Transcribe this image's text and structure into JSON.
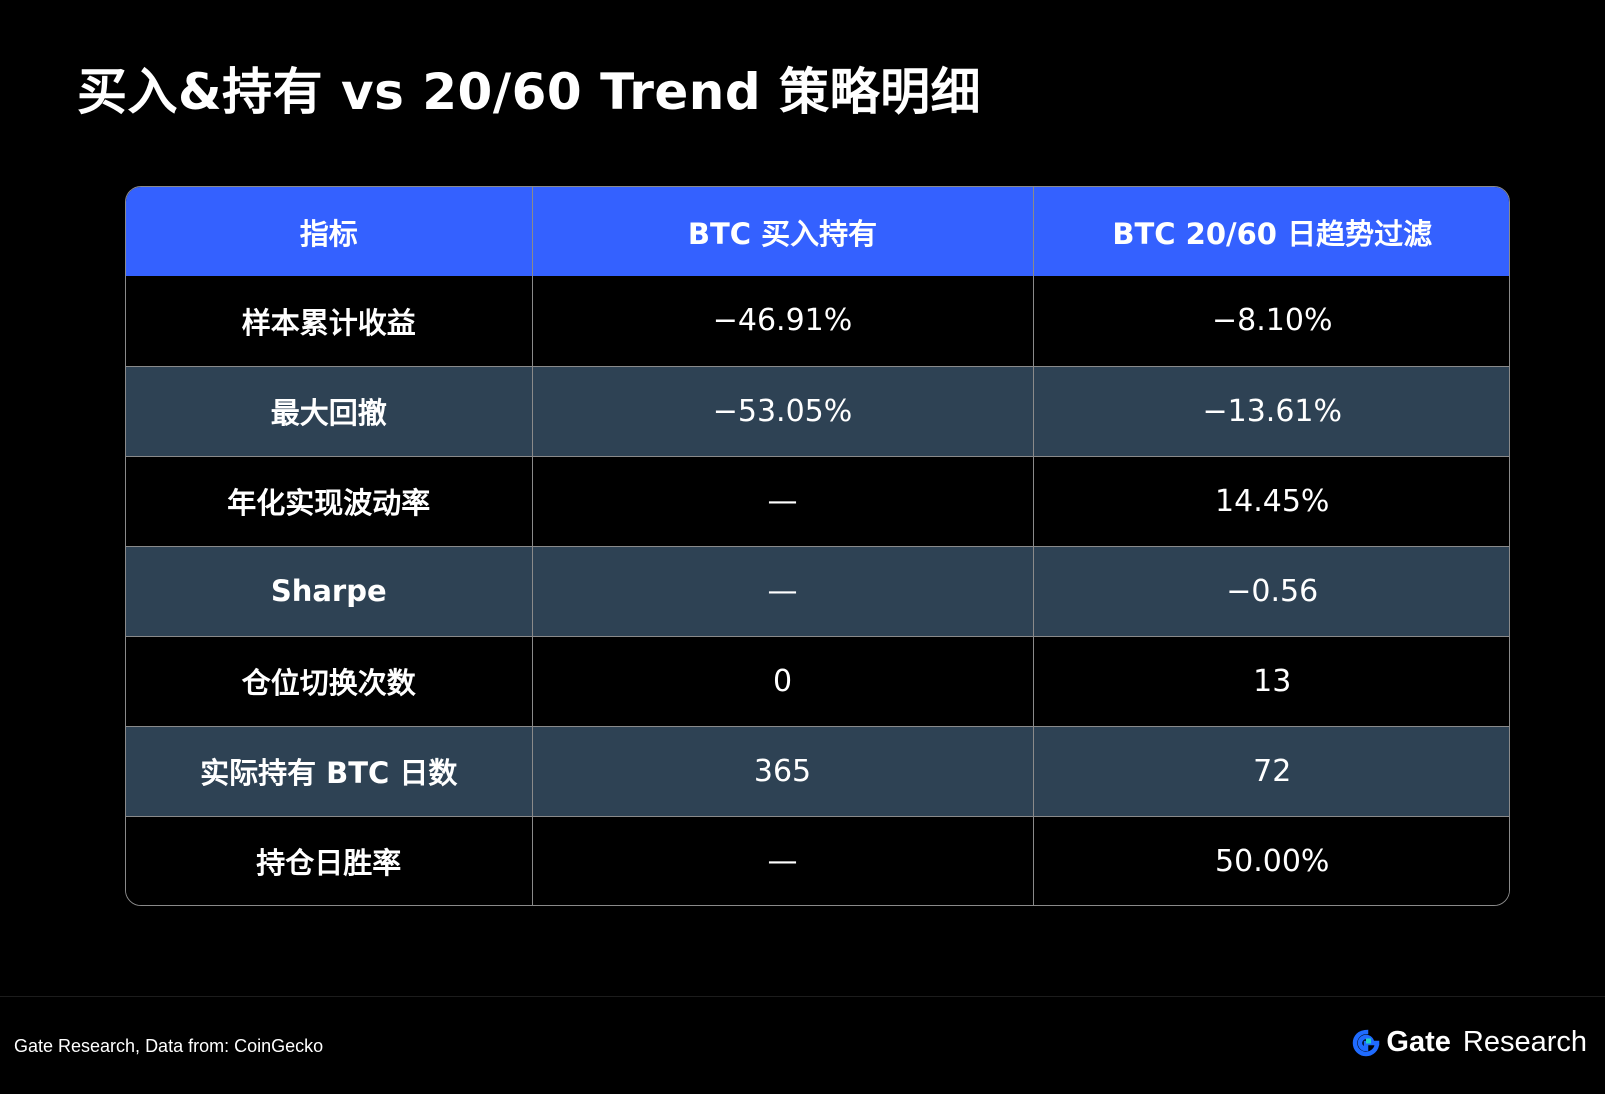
{
  "title": "买入&持有 vs 20/60 Trend 策略明细",
  "chart_data": {
    "type": "table",
    "columns": [
      "指标",
      "BTC 买入持有",
      "BTC 20/60 日趋势过滤"
    ],
    "rows": [
      [
        "样本累计收益",
        "−46.91%",
        "−8.10%"
      ],
      [
        "最大回撤",
        "−53.05%",
        "−13.61%"
      ],
      [
        "年化实现波动率",
        "—",
        "14.45%"
      ],
      [
        "Sharpe",
        "—",
        "−0.56"
      ],
      [
        "仓位切换次数",
        "0",
        "13"
      ],
      [
        "实际持有 BTC 日数",
        "365",
        "72"
      ],
      [
        "持仓日胜率",
        "—",
        "50.00%"
      ]
    ]
  },
  "colors": {
    "header_bg": "#3461ff",
    "row_dark": "#000000",
    "row_alt": "#2e4254",
    "brand_accent": "#1f6bff"
  },
  "footer": {
    "source": "Gate Research, Data from: CoinGecko",
    "brand_name": "Gate",
    "brand_sub": "Research",
    "brand_icon": "gate-logo-icon"
  }
}
